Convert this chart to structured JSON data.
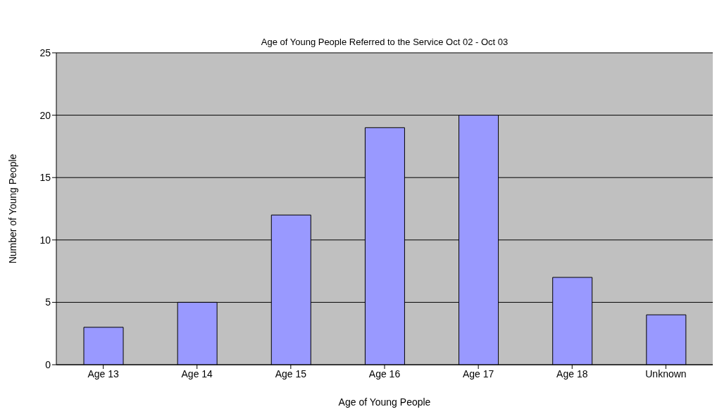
{
  "chart_data": {
    "type": "bar",
    "title": "Age of Young People Referred to the Service Oct 02 - Oct 03",
    "xlabel": "Age of Young People",
    "ylabel": "Number of Young People",
    "categories": [
      "Age 13",
      "Age 14",
      "Age 15",
      "Age 16",
      "Age 17",
      "Age 18",
      "Unknown"
    ],
    "values": [
      3,
      5,
      12,
      19,
      20,
      7,
      4
    ],
    "color": "#9999ff",
    "ylim": [
      0,
      25
    ],
    "yticks": [
      0,
      5,
      10,
      15,
      20,
      25
    ],
    "grid": "y",
    "legend": false
  }
}
